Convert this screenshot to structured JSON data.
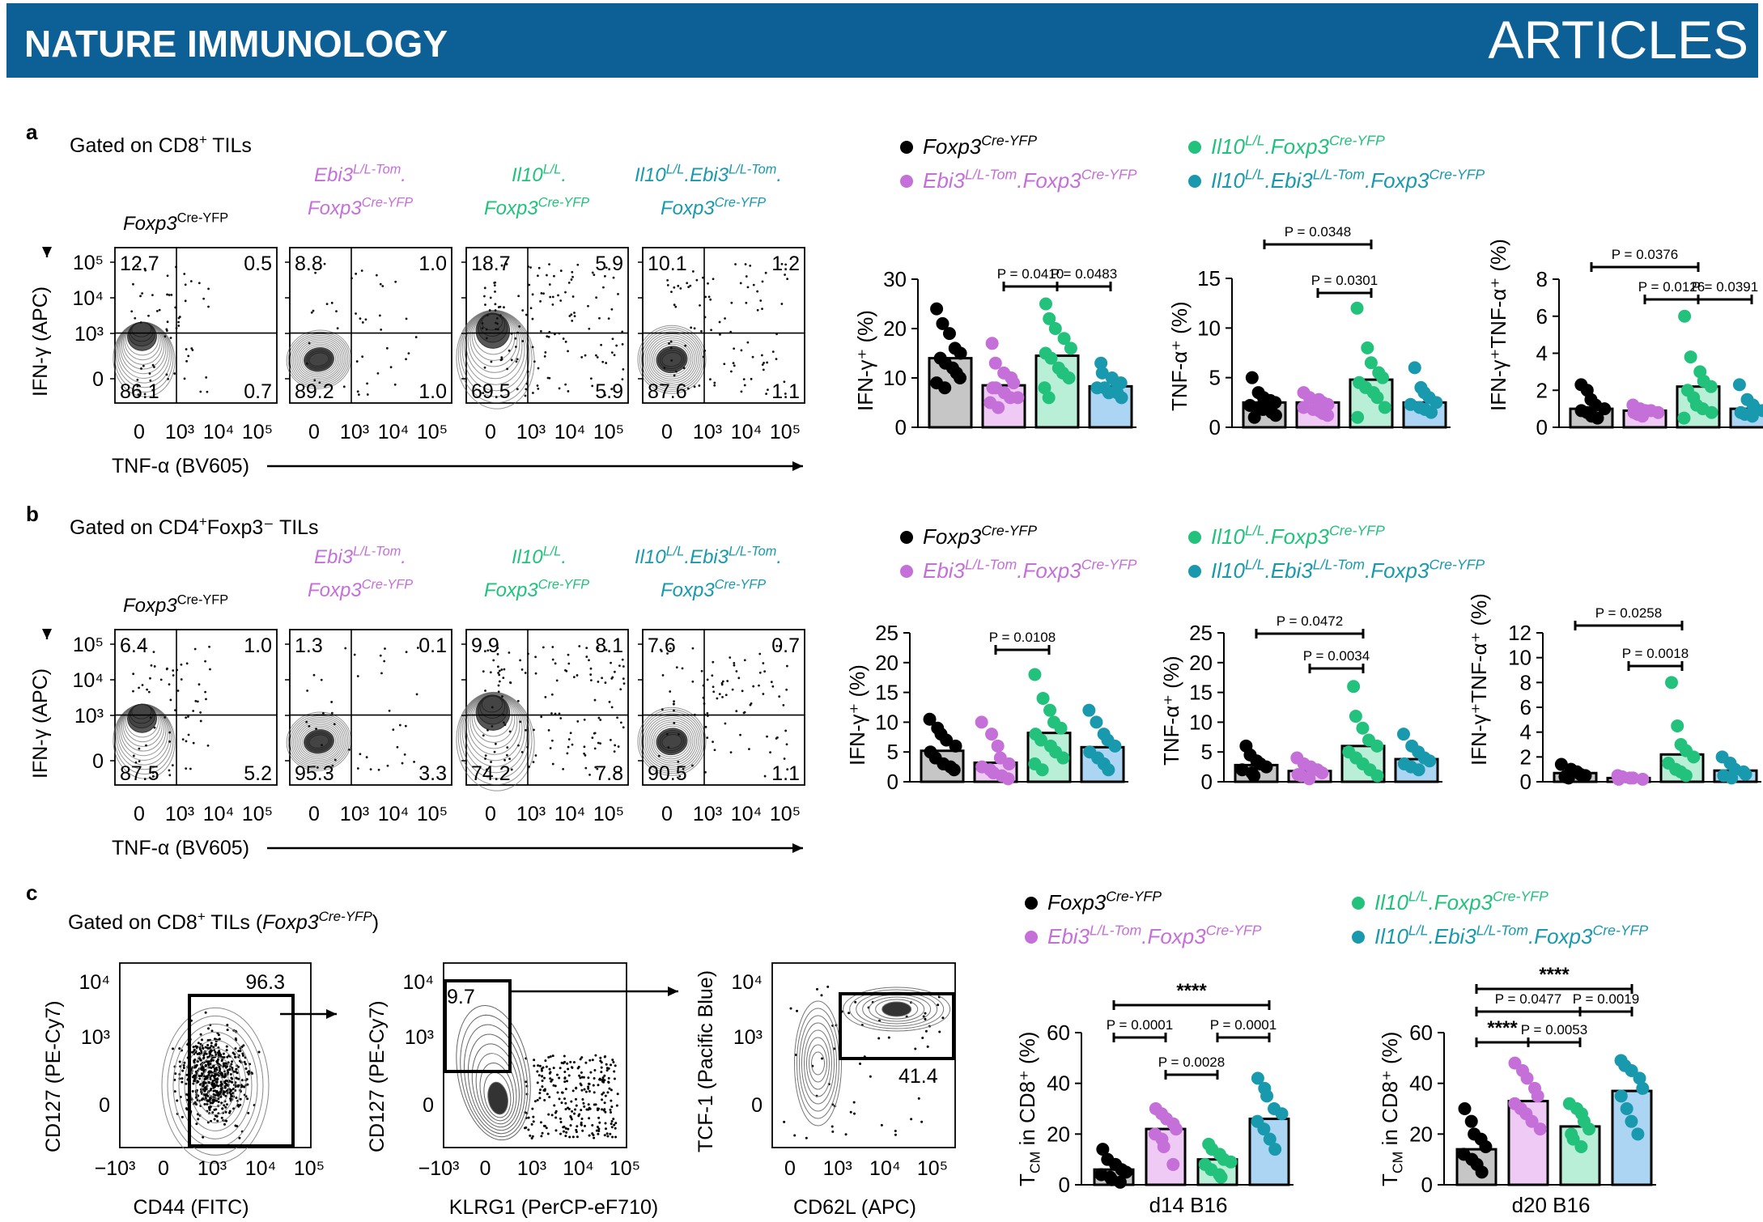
{
  "header": {
    "journal": "NATURE IMMUNOLOGY",
    "section": "ARTICLES",
    "color": "#0d6096"
  },
  "colors": {
    "black": "#000000",
    "magenta": "#c56fd9",
    "green": "#22c27d",
    "teal": "#1899ae",
    "bar_black": "#c6c6c6",
    "bar_magenta": "#efcaf5",
    "bar_green": "#b8efd6",
    "bar_teal": "#abd5f3"
  },
  "genotypes": {
    "g1": {
      "a": "Foxp3",
      "a_sup": "Cre-YFP"
    },
    "g2": {
      "a": "Ebi3",
      "a_sup": "L/L-Tom",
      "b": "Foxp3",
      "b_sup": "Cre-YFP"
    },
    "g3": {
      "a": "Il10",
      "a_sup": "L/L",
      "b": "Foxp3",
      "b_sup": "Cre-YFP"
    },
    "g4": {
      "a": "Il10",
      "a_sup": "L/L",
      "b": "Ebi3",
      "b_sup": "L/L-Tom",
      "c": "Foxp3",
      "c_sup": "Cre-YFP"
    }
  },
  "panels": {
    "a": {
      "letter": "a",
      "gate_main": "Gated on CD8",
      "gate_sup": "+",
      "gate_rest": " TILs",
      "flow_axes": {
        "y": "IFN-γ (APC)",
        "x": "TNF-α (BV605)",
        "y_ticks": [
          "10⁵",
          "10⁴",
          "10³",
          "0"
        ],
        "x_ticks": [
          "0",
          "10³",
          "10⁴",
          "10⁵"
        ]
      },
      "quadrants": [
        {
          "ul": "12.7",
          "ur": "0.5",
          "ll": "86.1",
          "lr": "0.7"
        },
        {
          "ul": "8.8",
          "ur": "1.0",
          "ll": "89.2",
          "lr": "1.0"
        },
        {
          "ul": "18.7",
          "ur": "5.9",
          "ll": "69.5",
          "lr": "5.9"
        },
        {
          "ul": "10.1",
          "ur": "1.2",
          "ll": "87.6",
          "lr": "1.1"
        }
      ]
    },
    "b": {
      "letter": "b",
      "gate_main": "Gated on CD4",
      "gate_sup": "+",
      "gate_rest": "Foxp3⁻ TILs",
      "flow_axes": {
        "y": "IFN-γ (APC)",
        "x": "TNF-α (BV605)",
        "y_ticks": [
          "10⁵",
          "10⁴",
          "10³",
          "0"
        ],
        "x_ticks": [
          "0",
          "10³",
          "10⁴",
          "10⁵"
        ]
      },
      "quadrants": [
        {
          "ul": "6.4",
          "ur": "1.0",
          "ll": "87.5",
          "lr": "5.2"
        },
        {
          "ul": "1.3",
          "ur": "0.1",
          "ll": "95.3",
          "lr": "3.3"
        },
        {
          "ul": "9.9",
          "ur": "8.1",
          "ll": "74.2",
          "lr": "7.8"
        },
        {
          "ul": "7.6",
          "ur": "0.7",
          "ll": "90.5",
          "lr": "1.1"
        }
      ]
    },
    "c": {
      "letter": "c",
      "gate_main": "Gated on CD8",
      "gate_sup": "+",
      "gate_rest": " TILs (",
      "gate_ital": "Foxp3",
      "gate_ital_sup": "Cre-YFP",
      "gate_end": ")",
      "plots": [
        {
          "y": "CD127 (PE-Cy7)",
          "x": "CD44 (FITC)",
          "y_ticks": [
            "10⁴",
            "10³",
            "0"
          ],
          "x_ticks": [
            "−10³",
            "0",
            "10³",
            "10⁴",
            "10⁵"
          ],
          "gate": "96.3"
        },
        {
          "y": "CD127 (PE-Cy7)",
          "x": "KLRG1 (PerCP-eF710)",
          "y_ticks": [
            "10⁴",
            "10³",
            "0"
          ],
          "x_ticks": [
            "−10³",
            "0",
            "10³",
            "10⁴",
            "10⁵"
          ],
          "gate": "9.7"
        },
        {
          "y": "TCF-1 (Pacific Blue)",
          "x": "CD62L (APC)",
          "y_ticks": [
            "10⁴",
            "10³",
            "0"
          ],
          "x_ticks": [
            "0",
            "10³",
            "10⁴",
            "10⁵"
          ],
          "gate": "41.4"
        }
      ]
    }
  },
  "chart_data": [
    {
      "type": "bar",
      "panel": "a",
      "ylabel": "IFN-γ⁺ (%)",
      "ylim": [
        0,
        30
      ],
      "yticks": [
        0,
        10,
        20,
        30
      ],
      "categories": [
        "Foxp3Cre-YFP",
        "Ebi3L/L-Tom.Foxp3Cre-YFP",
        "Il10L/L.Foxp3Cre-YFP",
        "Il10L/L.Ebi3L/L-Tom.Foxp3Cre-YFP"
      ],
      "values": [
        14,
        8.5,
        14.5,
        8.3
      ],
      "points": [
        [
          24,
          21,
          19,
          16,
          15,
          14,
          13,
          12,
          11,
          10,
          9,
          8
        ],
        [
          17,
          13,
          11,
          10,
          9,
          8,
          8,
          7,
          6,
          6,
          5,
          4
        ],
        [
          25,
          22,
          20,
          18,
          16,
          15,
          14,
          12,
          11,
          10,
          8,
          6
        ],
        [
          13,
          11,
          10,
          9,
          9,
          8,
          8,
          7,
          7,
          6
        ]
      ],
      "comparisons": [
        {
          "label": "P = 0.0410",
          "from": 1,
          "to": 2
        },
        {
          "label": "P = 0.0483",
          "from": 2,
          "to": 3
        }
      ]
    },
    {
      "type": "bar",
      "panel": "a",
      "ylabel": "TNF-α⁺ (%)",
      "ylim": [
        0,
        15
      ],
      "yticks": [
        0,
        5,
        10,
        15
      ],
      "values": [
        2.5,
        2.5,
        4.8,
        2.5
      ],
      "points": [
        [
          5,
          3.5,
          3,
          2.7,
          2.5,
          2.2,
          2,
          1.8,
          1.5,
          1.2,
          1
        ],
        [
          3.5,
          3,
          2.8,
          2.5,
          2.3,
          2,
          1.8,
          1.6,
          1.4,
          1.2
        ],
        [
          12,
          8,
          6.5,
          5.5,
          5,
          4.5,
          4,
          3.5,
          3,
          2,
          1
        ],
        [
          6,
          4,
          3.5,
          3,
          2.5,
          2.3,
          2,
          1.8,
          1.5
        ]
      ],
      "comparisons": [
        {
          "label": "P = 0.0348",
          "from": 0,
          "to": 2
        },
        {
          "label": "P = 0.0301",
          "from": 1,
          "to": 2
        }
      ]
    },
    {
      "type": "bar",
      "panel": "a",
      "ylabel": "IFN-γ⁺TNF-α⁺ (%)",
      "ylim": [
        0,
        8
      ],
      "yticks": [
        0,
        2,
        4,
        6,
        8
      ],
      "values": [
        1.0,
        0.9,
        2.2,
        1.0
      ],
      "points": [
        [
          2.3,
          2,
          1.5,
          1.2,
          1,
          0.9,
          0.8,
          0.6,
          0.5
        ],
        [
          1.2,
          1,
          0.9,
          0.9,
          0.8,
          0.8,
          0.7,
          0.6
        ],
        [
          6,
          3.8,
          3,
          2.5,
          2.2,
          2,
          1.6,
          1.2,
          1,
          0.8,
          0.5
        ],
        [
          2.3,
          1.5,
          1.2,
          1,
          0.9,
          0.8,
          0.7,
          0.6
        ]
      ],
      "comparisons": [
        {
          "label": "P = 0.0376",
          "from": 0,
          "to": 2
        },
        {
          "label": "P = 0.0126",
          "from": 1,
          "to": 2
        },
        {
          "label": "P = 0.0391",
          "from": 2,
          "to": 3
        }
      ]
    },
    {
      "type": "bar",
      "panel": "b",
      "ylabel": "IFN-γ⁺ (%)",
      "ylim": [
        0,
        25
      ],
      "yticks": [
        0,
        5,
        10,
        15,
        20,
        25
      ],
      "values": [
        5.2,
        3.2,
        8.2,
        5.8
      ],
      "points": [
        [
          10.5,
          9,
          8,
          7,
          6,
          5,
          4,
          3,
          2.5,
          2
        ],
        [
          10,
          8,
          6,
          4,
          3,
          2.5,
          2,
          1.5,
          1,
          0.5
        ],
        [
          18,
          14,
          12,
          10,
          9,
          8,
          7,
          6,
          5,
          4,
          3,
          2
        ],
        [
          12,
          10,
          8,
          7,
          6,
          5,
          4,
          3,
          2
        ]
      ],
      "comparisons": [
        {
          "label": "P = 0.0108",
          "from": 1,
          "to": 2
        }
      ]
    },
    {
      "type": "bar",
      "panel": "b",
      "ylabel": "TNF-α⁺ (%)",
      "ylim": [
        0,
        25
      ],
      "yticks": [
        0,
        5,
        10,
        15,
        20,
        25
      ],
      "values": [
        2.8,
        1.8,
        6.0,
        3.8
      ],
      "points": [
        [
          6,
          4.5,
          3.5,
          3,
          2.5,
          2,
          1.5,
          1
        ],
        [
          4,
          3,
          2.5,
          2,
          1.5,
          1.2,
          1,
          0.5
        ],
        [
          16,
          11,
          9,
          7,
          6,
          5,
          4,
          3,
          2,
          1
        ],
        [
          8,
          6,
          5,
          4,
          3.5,
          3,
          2.5,
          2
        ]
      ],
      "comparisons": [
        {
          "label": "P = 0.0472",
          "from": 0,
          "to": 2
        },
        {
          "label": "P = 0.0034",
          "from": 1,
          "to": 2
        }
      ]
    },
    {
      "type": "bar",
      "panel": "b",
      "ylabel": "IFN-γ⁺TNF-α⁺ (%)",
      "ylim": [
        0,
        12
      ],
      "yticks": [
        0,
        2,
        4,
        6,
        8,
        10,
        12
      ],
      "values": [
        0.7,
        0.3,
        2.2,
        0.9
      ],
      "points": [
        [
          1.4,
          1,
          0.8,
          0.6,
          0.5,
          0.4,
          0.3
        ],
        [
          0.5,
          0.4,
          0.3,
          0.3,
          0.2,
          0.2
        ],
        [
          8,
          4.5,
          3,
          2.5,
          2,
          1.5,
          1,
          0.8,
          0.5
        ],
        [
          2,
          1.5,
          1,
          0.8,
          0.6,
          0.5,
          0.3
        ]
      ],
      "comparisons": [
        {
          "label": "P = 0.0258",
          "from": 0,
          "to": 2
        },
        {
          "label": "P = 0.0018",
          "from": 1,
          "to": 2
        }
      ]
    },
    {
      "type": "bar",
      "panel": "c",
      "ylabel": "T",
      "ylabel_sub": "CM",
      "ylabel_rest": " in CD8⁺ (%)",
      "xlabel": "d14 B16",
      "ylim": [
        0,
        60
      ],
      "yticks": [
        0,
        20,
        40,
        60
      ],
      "values": [
        6,
        22,
        10,
        26
      ],
      "points": [
        [
          14,
          10,
          8,
          6,
          5,
          4,
          3,
          2,
          1
        ],
        [
          30,
          28,
          26,
          24,
          22,
          20,
          18,
          15,
          8
        ],
        [
          16,
          14,
          12,
          10,
          9,
          8,
          6,
          4,
          3
        ],
        [
          42,
          38,
          35,
          30,
          28,
          25,
          22,
          18,
          14
        ]
      ],
      "comparisons": [
        {
          "label": "****",
          "from": 0,
          "to": 3
        },
        {
          "label": "P = 0.0001",
          "from": 0,
          "to": 1
        },
        {
          "label": "P = 0.0001",
          "from": 2,
          "to": 3
        },
        {
          "label": "P = 0.0028",
          "from": 1,
          "to": 2
        }
      ]
    },
    {
      "type": "bar",
      "panel": "c",
      "ylabel": "T",
      "ylabel_sub": "CM",
      "ylabel_rest": " in CD8⁺ (%)",
      "xlabel": "d20 B16",
      "ylim": [
        0,
        60
      ],
      "yticks": [
        0,
        20,
        40,
        60
      ],
      "values": [
        14,
        33,
        23,
        37
      ],
      "points": [
        [
          30,
          25,
          20,
          18,
          15,
          12,
          10,
          8,
          5
        ],
        [
          48,
          45,
          42,
          38,
          35,
          32,
          30,
          28,
          25,
          22
        ],
        [
          32,
          30,
          28,
          25,
          22,
          20,
          18,
          15
        ],
        [
          49,
          47,
          45,
          42,
          38,
          35,
          30,
          25,
          20
        ]
      ],
      "comparisons": [
        {
          "label": "****",
          "from": 0,
          "to": 3
        },
        {
          "label": "P = 0.0477",
          "from": 0,
          "to": 2
        },
        {
          "label": "P = 0.0019",
          "from": 2,
          "to": 3
        },
        {
          "label": "****",
          "from": 0,
          "to": 1
        },
        {
          "label": "P = 0.0053",
          "from": 1,
          "to": 2
        }
      ]
    }
  ]
}
